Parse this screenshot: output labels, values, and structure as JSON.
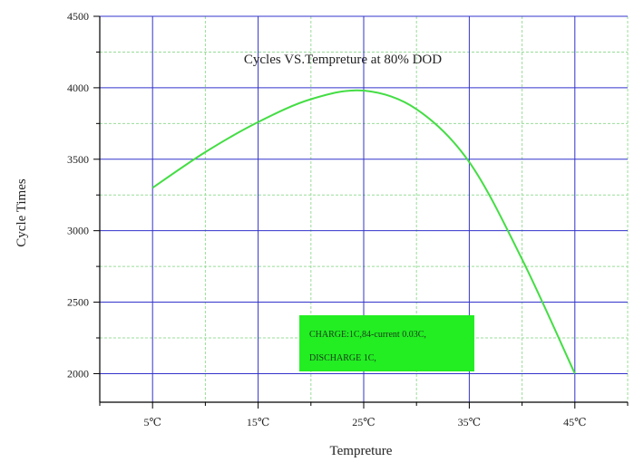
{
  "chart_data": {
    "type": "line",
    "title": "Cycles VS.Tempreture at 80% DOD",
    "xlabel": "Tempreture",
    "ylabel": "Cycle Times",
    "x_ticks": [
      "5℃",
      "15℃",
      "25℃",
      "35℃",
      "45℃"
    ],
    "y_ticks": [
      "2000",
      "2500",
      "3000",
      "3500",
      "4000",
      "4500"
    ],
    "xlim": [
      0,
      50
    ],
    "ylim": [
      1800,
      4500
    ],
    "grid": true,
    "series": [
      {
        "x": [
          5,
          10,
          15,
          20,
          25,
          30,
          35,
          40,
          45
        ],
        "y": [
          3300,
          3550,
          3760,
          3920,
          3980,
          3850,
          3480,
          2800,
          2000
        ],
        "color": "#44dd44"
      }
    ],
    "annotation": {
      "lines": [
        "CHARGE:1C,84-current 0.03C,",
        "DISCHARGE 1C,"
      ],
      "color": "#22ee22"
    },
    "grid_major_color": "#3333cc",
    "grid_minor_color": "#99dd99"
  }
}
